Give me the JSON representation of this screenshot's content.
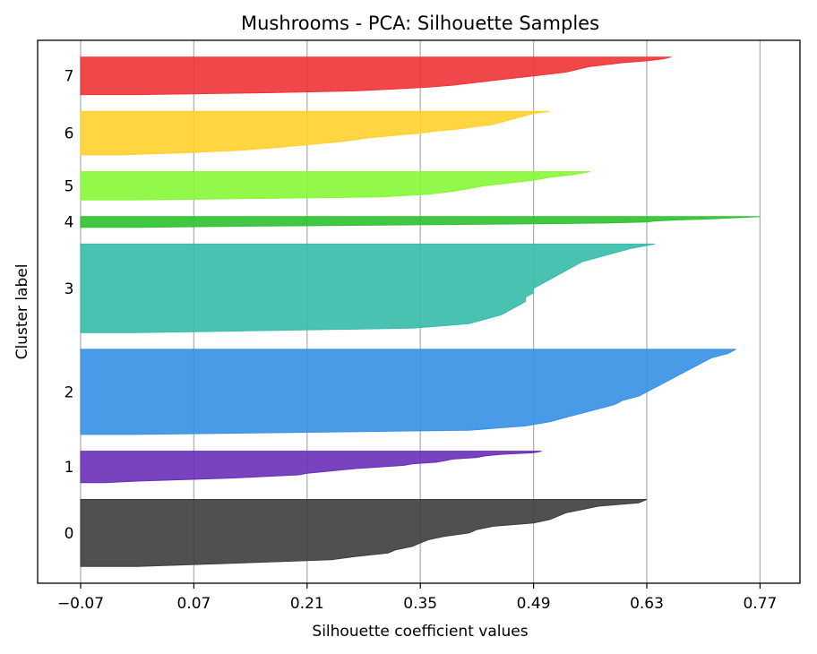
{
  "chart_data": {
    "type": "area",
    "title": "Mushrooms - PCA: Silhouette Samples",
    "xlabel": "Silhouette coefficient values",
    "ylabel": "Cluster label",
    "xlim": [
      -0.07,
      0.84
    ],
    "x_ticks": [
      -0.07,
      0.07,
      0.21,
      0.35,
      0.49,
      0.63,
      0.77
    ],
    "x_tick_labels": [
      "−0.07",
      "0.07",
      "0.21",
      "0.35",
      "0.49",
      "0.63",
      "0.77"
    ],
    "grid": "vertical",
    "clusters": [
      {
        "label": "0",
        "color": "#3d3d3d",
        "size": 10,
        "min": -0.07,
        "max": 0.63,
        "profile": [
          [
            0,
            0.63
          ],
          [
            0.05,
            0.62
          ],
          [
            0.1,
            0.57
          ],
          [
            0.15,
            0.55
          ],
          [
            0.2,
            0.53
          ],
          [
            0.25,
            0.52
          ],
          [
            0.3,
            0.51
          ],
          [
            0.35,
            0.49
          ],
          [
            0.4,
            0.44
          ],
          [
            0.45,
            0.42
          ],
          [
            0.5,
            0.41
          ],
          [
            0.55,
            0.38
          ],
          [
            0.6,
            0.36
          ],
          [
            0.65,
            0.35
          ],
          [
            0.7,
            0.34
          ],
          [
            0.75,
            0.32
          ],
          [
            0.8,
            0.31
          ],
          [
            0.85,
            0.27
          ],
          [
            0.9,
            0.24
          ],
          [
            0.95,
            0.12
          ],
          [
            1,
            0.0
          ]
        ]
      },
      {
        "label": "1",
        "color": "#6a2eb8",
        "size": 4.7,
        "min": -0.07,
        "max": 0.5,
        "profile": [
          [
            0,
            0.5
          ],
          [
            0.05,
            0.49
          ],
          [
            0.1,
            0.45
          ],
          [
            0.15,
            0.43
          ],
          [
            0.2,
            0.42
          ],
          [
            0.25,
            0.39
          ],
          [
            0.3,
            0.38
          ],
          [
            0.35,
            0.37
          ],
          [
            0.4,
            0.34
          ],
          [
            0.45,
            0.33
          ],
          [
            0.5,
            0.3
          ],
          [
            0.55,
            0.27
          ],
          [
            0.6,
            0.25
          ],
          [
            0.65,
            0.23
          ],
          [
            0.7,
            0.21
          ],
          [
            0.75,
            0.2
          ],
          [
            0.8,
            0.16
          ],
          [
            0.85,
            0.12
          ],
          [
            0.9,
            0.06
          ],
          [
            0.95,
            0.0
          ],
          [
            1,
            -0.04
          ]
        ]
      },
      {
        "label": "2",
        "color": "#3690e4",
        "size": 12.7,
        "min": -0.07,
        "max": 0.74,
        "profile": [
          [
            0,
            0.74
          ],
          [
            0.05,
            0.73
          ],
          [
            0.1,
            0.71
          ],
          [
            0.15,
            0.7
          ],
          [
            0.2,
            0.69
          ],
          [
            0.25,
            0.68
          ],
          [
            0.3,
            0.67
          ],
          [
            0.35,
            0.66
          ],
          [
            0.4,
            0.65
          ],
          [
            0.45,
            0.64
          ],
          [
            0.5,
            0.63
          ],
          [
            0.55,
            0.62
          ],
          [
            0.6,
            0.6
          ],
          [
            0.65,
            0.59
          ],
          [
            0.7,
            0.57
          ],
          [
            0.75,
            0.55
          ],
          [
            0.8,
            0.53
          ],
          [
            0.85,
            0.51
          ],
          [
            0.9,
            0.48
          ],
          [
            0.95,
            0.41
          ],
          [
            1,
            0.0
          ]
        ]
      },
      {
        "label": "3",
        "color": "#36bbaa",
        "size": 13.2,
        "min": -0.07,
        "max": 0.64,
        "profile": [
          [
            0,
            0.64
          ],
          [
            0.05,
            0.61
          ],
          [
            0.1,
            0.59
          ],
          [
            0.15,
            0.57
          ],
          [
            0.2,
            0.55
          ],
          [
            0.25,
            0.54
          ],
          [
            0.3,
            0.53
          ],
          [
            0.35,
            0.52
          ],
          [
            0.4,
            0.51
          ],
          [
            0.45,
            0.5
          ],
          [
            0.5,
            0.49
          ],
          [
            0.55,
            0.49
          ],
          [
            0.6,
            0.48
          ],
          [
            0.65,
            0.48
          ],
          [
            0.7,
            0.47
          ],
          [
            0.75,
            0.46
          ],
          [
            0.8,
            0.45
          ],
          [
            0.85,
            0.43
          ],
          [
            0.9,
            0.41
          ],
          [
            0.95,
            0.34
          ],
          [
            1,
            0.0
          ]
        ]
      },
      {
        "label": "4",
        "color": "#2cc12c",
        "size": 1.6,
        "min": -0.07,
        "max": 0.77,
        "profile": [
          [
            0,
            0.77
          ],
          [
            0.1,
            0.74
          ],
          [
            0.2,
            0.71
          ],
          [
            0.3,
            0.67
          ],
          [
            0.4,
            0.64
          ],
          [
            0.5,
            0.63
          ],
          [
            0.6,
            0.58
          ],
          [
            0.7,
            0.45
          ],
          [
            0.8,
            0.3
          ],
          [
            0.9,
            0.12
          ],
          [
            1,
            0.0
          ]
        ]
      },
      {
        "label": "5",
        "color": "#86f735",
        "size": 4.2,
        "min": -0.07,
        "max": 0.56,
        "profile": [
          [
            0,
            0.56
          ],
          [
            0.1,
            0.54
          ],
          [
            0.2,
            0.51
          ],
          [
            0.3,
            0.49
          ],
          [
            0.4,
            0.46
          ],
          [
            0.5,
            0.43
          ],
          [
            0.6,
            0.41
          ],
          [
            0.7,
            0.39
          ],
          [
            0.8,
            0.36
          ],
          [
            0.9,
            0.3
          ],
          [
            1,
            0.0
          ]
        ]
      },
      {
        "label": "6",
        "color": "#ffd02e",
        "size": 6.5,
        "min": -0.07,
        "max": 0.51,
        "profile": [
          [
            0,
            0.51
          ],
          [
            0.05,
            0.49
          ],
          [
            0.1,
            0.48
          ],
          [
            0.15,
            0.47
          ],
          [
            0.2,
            0.46
          ],
          [
            0.25,
            0.45
          ],
          [
            0.3,
            0.44
          ],
          [
            0.35,
            0.42
          ],
          [
            0.4,
            0.4
          ],
          [
            0.45,
            0.37
          ],
          [
            0.5,
            0.35
          ],
          [
            0.55,
            0.32
          ],
          [
            0.6,
            0.29
          ],
          [
            0.65,
            0.27
          ],
          [
            0.7,
            0.25
          ],
          [
            0.75,
            0.22
          ],
          [
            0.8,
            0.19
          ],
          [
            0.85,
            0.16
          ],
          [
            0.9,
            0.12
          ],
          [
            0.95,
            0.06
          ],
          [
            1,
            -0.02
          ]
        ]
      },
      {
        "label": "7",
        "color": "#ee3336",
        "size": 5.6,
        "min": -0.07,
        "max": 0.66,
        "profile": [
          [
            0,
            0.66
          ],
          [
            0.05,
            0.65
          ],
          [
            0.1,
            0.63
          ],
          [
            0.15,
            0.6
          ],
          [
            0.2,
            0.58
          ],
          [
            0.25,
            0.56
          ],
          [
            0.3,
            0.55
          ],
          [
            0.35,
            0.54
          ],
          [
            0.4,
            0.53
          ],
          [
            0.45,
            0.51
          ],
          [
            0.5,
            0.49
          ],
          [
            0.55,
            0.47
          ],
          [
            0.6,
            0.45
          ],
          [
            0.65,
            0.43
          ],
          [
            0.7,
            0.41
          ],
          [
            0.75,
            0.39
          ],
          [
            0.8,
            0.36
          ],
          [
            0.85,
            0.32
          ],
          [
            0.9,
            0.27
          ],
          [
            0.95,
            0.16
          ],
          [
            1,
            0.0
          ]
        ]
      }
    ]
  }
}
